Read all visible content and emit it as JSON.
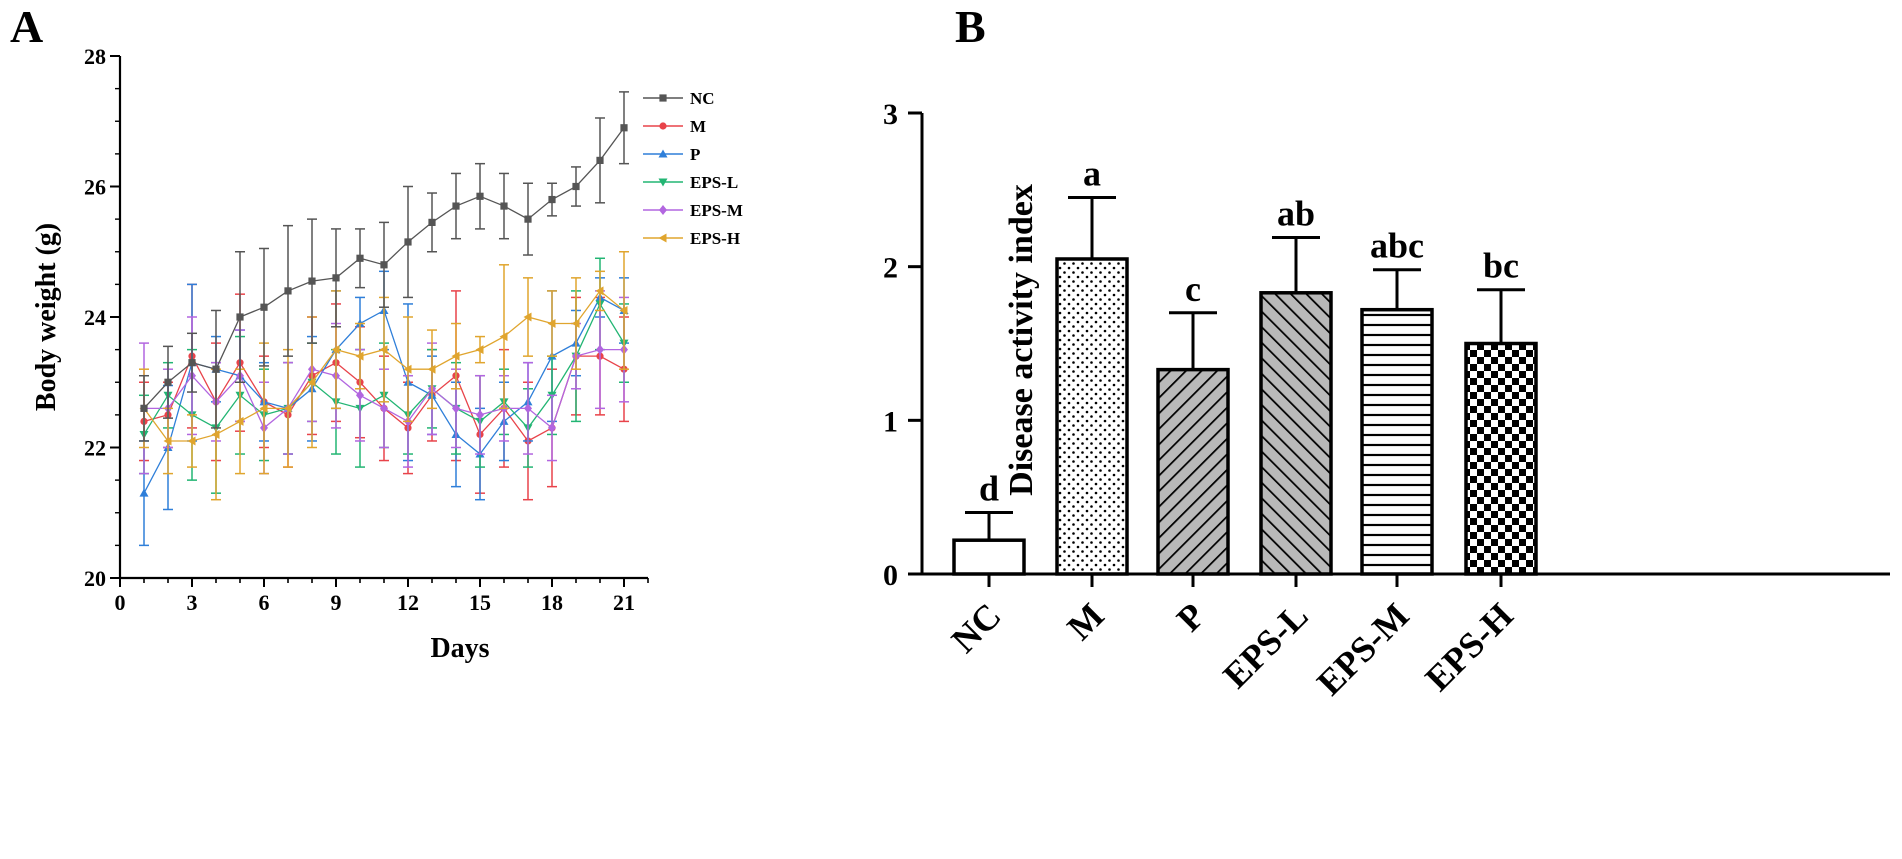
{
  "chart_data": [
    {
      "panel": "A",
      "type": "line",
      "xlabel": "Days",
      "ylabel": "Body weight (g)",
      "xlim": [
        0,
        21
      ],
      "ylim": [
        20,
        28
      ],
      "xticks": [
        0,
        3,
        6,
        9,
        12,
        15,
        18,
        21
      ],
      "yticks": [
        20,
        22,
        24,
        26,
        28
      ],
      "x": [
        1,
        2,
        3,
        4,
        5,
        6,
        7,
        8,
        9,
        10,
        11,
        12,
        13,
        14,
        15,
        16,
        17,
        18,
        19,
        20,
        21
      ],
      "series": [
        {
          "name": "NC",
          "color": "#555555",
          "marker": "square",
          "values": [
            22.6,
            23.0,
            23.3,
            23.2,
            24.0,
            24.15,
            24.4,
            24.55,
            24.6,
            24.9,
            24.8,
            25.15,
            25.45,
            25.7,
            25.85,
            25.7,
            25.5,
            25.8,
            26.0,
            26.4,
            26.9
          ],
          "errors": [
            0.5,
            0.55,
            0.45,
            0.9,
            1.0,
            0.9,
            1.0,
            0.95,
            0.75,
            0.45,
            0.65,
            0.85,
            0.45,
            0.5,
            0.5,
            0.5,
            0.55,
            0.25,
            0.3,
            0.65,
            0.55
          ]
        },
        {
          "name": "M",
          "color": "#e8434a",
          "marker": "circle",
          "values": [
            22.4,
            22.5,
            23.4,
            22.7,
            23.3,
            22.7,
            22.5,
            23.1,
            23.3,
            23.0,
            22.6,
            22.3,
            22.8,
            23.1,
            22.2,
            22.6,
            22.1,
            22.3,
            23.4,
            23.4,
            23.2
          ],
          "errors": [
            0.6,
            0.5,
            1.1,
            0.9,
            1.05,
            0.7,
            0.8,
            0.9,
            0.9,
            0.85,
            0.8,
            0.7,
            0.7,
            1.3,
            0.9,
            0.9,
            0.9,
            0.9,
            0.9,
            0.9,
            0.8
          ]
        },
        {
          "name": "P",
          "color": "#2f7fd9",
          "marker": "triangle-up",
          "values": [
            21.3,
            22.0,
            23.3,
            23.2,
            23.1,
            22.7,
            22.6,
            22.9,
            23.5,
            23.9,
            24.1,
            23.0,
            22.8,
            22.2,
            21.9,
            22.4,
            22.7,
            23.4,
            23.6,
            24.3,
            24.1
          ],
          "errors": [
            0.8,
            0.95,
            1.2,
            0.5,
            0.7,
            0.6,
            0.7,
            0.8,
            0.9,
            0.4,
            0.6,
            1.2,
            0.6,
            0.8,
            0.7,
            0.6,
            0.6,
            1.0,
            0.5,
            0.3,
            0.5
          ]
        },
        {
          "name": "EPS-L",
          "color": "#22b573",
          "marker": "triangle-down",
          "values": [
            22.2,
            22.8,
            22.5,
            22.3,
            22.8,
            22.5,
            22.6,
            23.0,
            22.7,
            22.6,
            22.8,
            22.5,
            22.9,
            22.6,
            22.4,
            22.7,
            22.3,
            22.8,
            23.4,
            24.2,
            23.6
          ],
          "errors": [
            0.6,
            0.5,
            1.0,
            1.0,
            0.9,
            0.7,
            0.7,
            0.6,
            0.8,
            0.9,
            0.8,
            0.6,
            0.6,
            0.7,
            0.7,
            0.5,
            0.6,
            0.6,
            1.0,
            0.7,
            0.6
          ]
        },
        {
          "name": "EPS-M",
          "color": "#b266e0",
          "marker": "diamond",
          "values": [
            22.6,
            22.6,
            23.1,
            22.7,
            23.1,
            22.3,
            22.6,
            23.2,
            23.1,
            22.8,
            22.6,
            22.4,
            22.9,
            22.6,
            22.5,
            22.6,
            22.6,
            22.3,
            23.4,
            23.5,
            23.5
          ],
          "errors": [
            1.0,
            0.6,
            0.9,
            0.6,
            0.7,
            0.7,
            0.7,
            0.8,
            0.8,
            0.7,
            0.6,
            0.7,
            0.7,
            0.6,
            0.6,
            0.5,
            0.7,
            0.5,
            0.5,
            0.9,
            0.8
          ]
        },
        {
          "name": "EPS-H",
          "color": "#e0a52e",
          "marker": "triangle-left",
          "values": [
            22.6,
            22.1,
            22.1,
            22.2,
            22.4,
            22.6,
            22.6,
            23.0,
            23.5,
            23.4,
            23.5,
            23.2,
            23.2,
            23.4,
            23.5,
            23.7,
            24.0,
            23.9,
            23.9,
            24.4,
            24.1
          ],
          "errors": [
            0.6,
            0.5,
            0.4,
            1.0,
            0.8,
            1.0,
            0.9,
            1.0,
            0.9,
            0.5,
            0.8,
            0.8,
            0.6,
            0.5,
            0.2,
            1.1,
            0.6,
            0.5,
            0.7,
            0.3,
            0.9
          ]
        }
      ],
      "legend_position": "top-right"
    },
    {
      "panel": "B",
      "type": "bar",
      "ylabel": "Disease activity index",
      "ylim": [
        0,
        3
      ],
      "yticks": [
        0,
        1,
        2,
        3
      ],
      "categories": [
        "NC",
        "M",
        "P",
        "EPS-L",
        "EPS-M",
        "EPS-H"
      ],
      "values": [
        0.22,
        2.05,
        1.33,
        1.83,
        1.72,
        1.5
      ],
      "errors": [
        0.18,
        0.4,
        0.37,
        0.36,
        0.26,
        0.35
      ],
      "significance": [
        "d",
        "a",
        "c",
        "ab",
        "abc",
        "bc"
      ],
      "patterns": [
        "none",
        "dots",
        "diag-right",
        "diag-left",
        "horizontal",
        "checker"
      ]
    }
  ],
  "panel_labels": {
    "a": "A",
    "b": "B"
  }
}
